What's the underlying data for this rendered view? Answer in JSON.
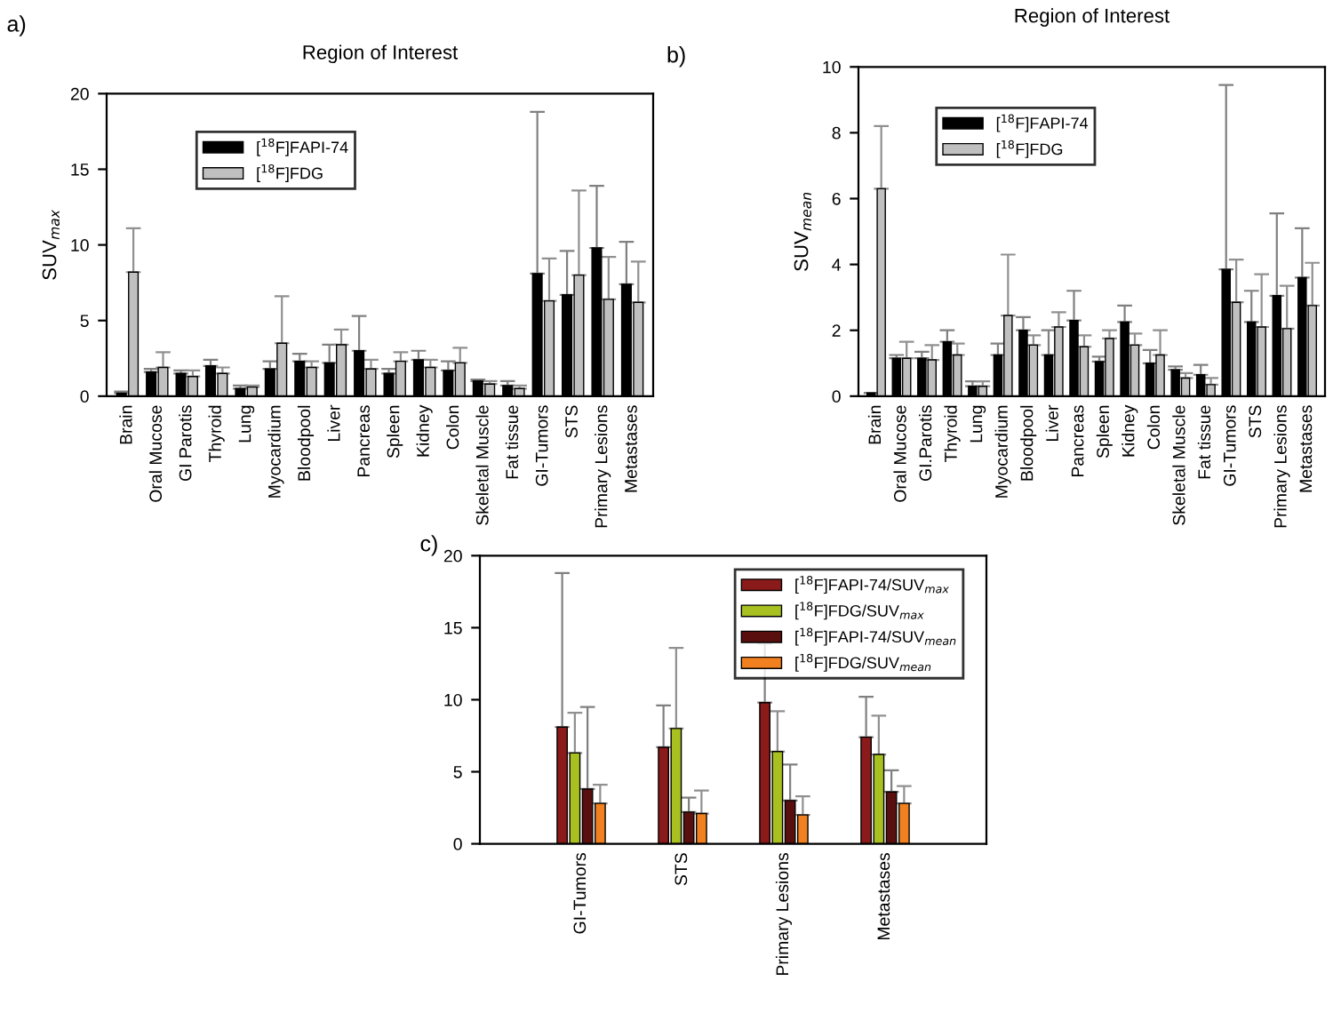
{
  "chart_data": [
    {
      "type": "bar",
      "title": "Region of Interest",
      "ylabel": "SUV$_{max}$",
      "annotations": [
        "a)"
      ],
      "categories": [
        "Brain",
        "Oral Mucose",
        "GI Parotis",
        "Thyroid",
        "Lung",
        "Myocardium",
        "Bloodpool",
        "Liver",
        "Pancreas",
        "Spleen",
        "Kidney",
        "Colon",
        "Skeletal Muscle",
        "Fat tissue",
        "GI-Tumors",
        "STS",
        "Primary Lesions",
        "Metastases"
      ],
      "series": [
        {
          "name": "[$^{18}$F]FAPI-74",
          "color": "#000000",
          "values": [
            0.2,
            1.6,
            1.5,
            2.0,
            0.5,
            1.8,
            2.3,
            2.2,
            3.0,
            1.5,
            2.4,
            1.7,
            1.0,
            0.7,
            8.1,
            6.7,
            9.8,
            7.4
          ],
          "errors": [
            [
              0.2,
              0.3
            ],
            [
              1.6,
              1.8
            ],
            [
              1.5,
              1.7
            ],
            [
              2.0,
              2.4
            ],
            [
              0.5,
              0.7
            ],
            [
              1.8,
              2.3
            ],
            [
              2.3,
              2.8
            ],
            [
              2.2,
              3.4
            ],
            [
              3.0,
              5.3
            ],
            [
              1.5,
              1.8
            ],
            [
              2.4,
              3.0
            ],
            [
              1.7,
              2.3
            ],
            [
              1.0,
              1.1
            ],
            [
              0.7,
              1.0
            ],
            [
              8.1,
              18.8
            ],
            [
              6.7,
              9.6
            ],
            [
              9.8,
              13.9
            ],
            [
              7.4,
              10.2
            ]
          ]
        },
        {
          "name": "[$^{18}$F]FDG",
          "color": "#c0c0c0",
          "values": [
            8.2,
            1.9,
            1.3,
            1.5,
            0.6,
            3.5,
            1.9,
            3.4,
            1.8,
            2.3,
            1.9,
            2.2,
            0.8,
            0.5,
            6.3,
            8.0,
            6.4,
            6.2
          ],
          "errors": [
            [
              8.2,
              11.1
            ],
            [
              1.9,
              2.9
            ],
            [
              1.3,
              1.7
            ],
            [
              1.5,
              1.9
            ],
            [
              0.6,
              0.7
            ],
            [
              3.5,
              6.6
            ],
            [
              1.9,
              2.3
            ],
            [
              3.4,
              4.4
            ],
            [
              1.8,
              2.4
            ],
            [
              2.3,
              2.9
            ],
            [
              1.9,
              2.4
            ],
            [
              2.2,
              3.2
            ],
            [
              0.8,
              1.0
            ],
            [
              0.5,
              0.7
            ],
            [
              6.3,
              9.1
            ],
            [
              8.0,
              13.6
            ],
            [
              6.4,
              9.2
            ],
            [
              6.2,
              8.9
            ]
          ]
        }
      ],
      "ylim": [
        0,
        20
      ],
      "yticks": [
        0,
        5,
        10,
        15,
        20
      ],
      "grid": false,
      "legend": "top left"
    },
    {
      "type": "bar",
      "title": "Region of Interest",
      "ylabel": "SUV$_{mean}$",
      "annotations": [
        "b)"
      ],
      "categories": [
        "Brain",
        "Oral Mucose",
        "GI.Parotis",
        "Thyroid",
        "Lung",
        "Myocardium",
        "Bloodpool",
        "Liver",
        "Pancreas",
        "Spleen",
        "Kidney",
        "Colon",
        "Skeletal Muscle",
        "Fat tissue",
        "GI-Tumors",
        "STS",
        "Primary Lesions",
        "Metastases"
      ],
      "series": [
        {
          "name": "[$^{18}$F]FAPI-74",
          "color": "#000000",
          "values": [
            0.1,
            1.15,
            1.15,
            1.65,
            0.3,
            1.25,
            2.0,
            1.25,
            2.3,
            1.05,
            2.25,
            1.0,
            0.8,
            0.65,
            3.85,
            2.25,
            3.05,
            3.6
          ],
          "errors": [
            [
              0.1,
              0.1
            ],
            [
              1.15,
              1.25
            ],
            [
              1.15,
              1.35
            ],
            [
              1.65,
              2.0
            ],
            [
              0.3,
              0.45
            ],
            [
              1.25,
              1.6
            ],
            [
              2.0,
              2.4
            ],
            [
              1.25,
              2.0
            ],
            [
              2.3,
              3.2
            ],
            [
              1.05,
              1.2
            ],
            [
              2.25,
              2.75
            ],
            [
              1.0,
              1.4
            ],
            [
              0.8,
              0.9
            ],
            [
              0.65,
              0.95
            ],
            [
              3.85,
              9.45
            ],
            [
              2.25,
              3.2
            ],
            [
              3.05,
              5.55
            ],
            [
              3.6,
              5.1
            ]
          ]
        },
        {
          "name": "[$^{18}$F]FDG",
          "color": "#c0c0c0",
          "values": [
            6.3,
            1.15,
            1.1,
            1.25,
            0.3,
            2.45,
            1.55,
            2.1,
            1.5,
            1.75,
            1.55,
            1.25,
            0.55,
            0.35,
            2.85,
            2.1,
            2.05,
            2.75
          ],
          "errors": [
            [
              6.3,
              8.2
            ],
            [
              1.15,
              1.65
            ],
            [
              1.1,
              1.55
            ],
            [
              1.25,
              1.6
            ],
            [
              0.3,
              0.45
            ],
            [
              2.45,
              4.3
            ],
            [
              1.55,
              1.85
            ],
            [
              2.1,
              2.55
            ],
            [
              1.5,
              1.85
            ],
            [
              1.75,
              2.0
            ],
            [
              1.55,
              1.9
            ],
            [
              1.25,
              2.0
            ],
            [
              0.55,
              0.7
            ],
            [
              0.35,
              0.55
            ],
            [
              2.85,
              4.15
            ],
            [
              2.1,
              3.7
            ],
            [
              2.05,
              3.35
            ],
            [
              2.75,
              4.05
            ]
          ]
        }
      ],
      "ylim": [
        0,
        10
      ],
      "yticks": [
        0,
        2,
        4,
        6,
        8,
        10
      ],
      "grid": false,
      "legend": "top left"
    },
    {
      "type": "bar",
      "annotations": [
        "c)"
      ],
      "categories": [
        "GI-Tumors",
        "STS",
        "Primary Lesions",
        "Metastases"
      ],
      "series": [
        {
          "name": "[$^{18}$F]FAPI-74/SUV$_{max}$",
          "color": "#8b1a1a",
          "values": [
            8.1,
            6.7,
            9.8,
            7.4
          ],
          "errors": [
            [
              8.1,
              18.8
            ],
            [
              6.7,
              9.6
            ],
            [
              9.8,
              13.9
            ],
            [
              7.4,
              10.2
            ]
          ]
        },
        {
          "name": "[$^{18}$F]FDG/SUV$_{max}$",
          "color": "#a8c020",
          "values": [
            6.3,
            8.0,
            6.4,
            6.2
          ],
          "errors": [
            [
              6.3,
              9.1
            ],
            [
              8.0,
              13.6
            ],
            [
              6.4,
              9.2
            ],
            [
              6.2,
              8.9
            ]
          ]
        },
        {
          "name": "[$^{18}$F]FAPI-74/SUV$_{mean}$",
          "color": "#5a0f0f",
          "values": [
            3.8,
            2.2,
            3.0,
            3.6
          ],
          "errors": [
            [
              3.8,
              9.5
            ],
            [
              2.2,
              3.2
            ],
            [
              3.0,
              5.5
            ],
            [
              3.6,
              5.1
            ]
          ]
        },
        {
          "name": "[$^{18}$F]FDG/SUV$_{mean}$",
          "color": "#f08020",
          "values": [
            2.8,
            2.1,
            2.0,
            2.8
          ],
          "errors": [
            [
              2.8,
              4.1
            ],
            [
              2.1,
              3.7
            ],
            [
              2.0,
              3.3
            ],
            [
              2.8,
              4.0
            ]
          ]
        }
      ],
      "ylim": [
        0,
        20
      ],
      "yticks": [
        0,
        5,
        10,
        15,
        20
      ],
      "grid": false,
      "legend": "top right"
    }
  ]
}
